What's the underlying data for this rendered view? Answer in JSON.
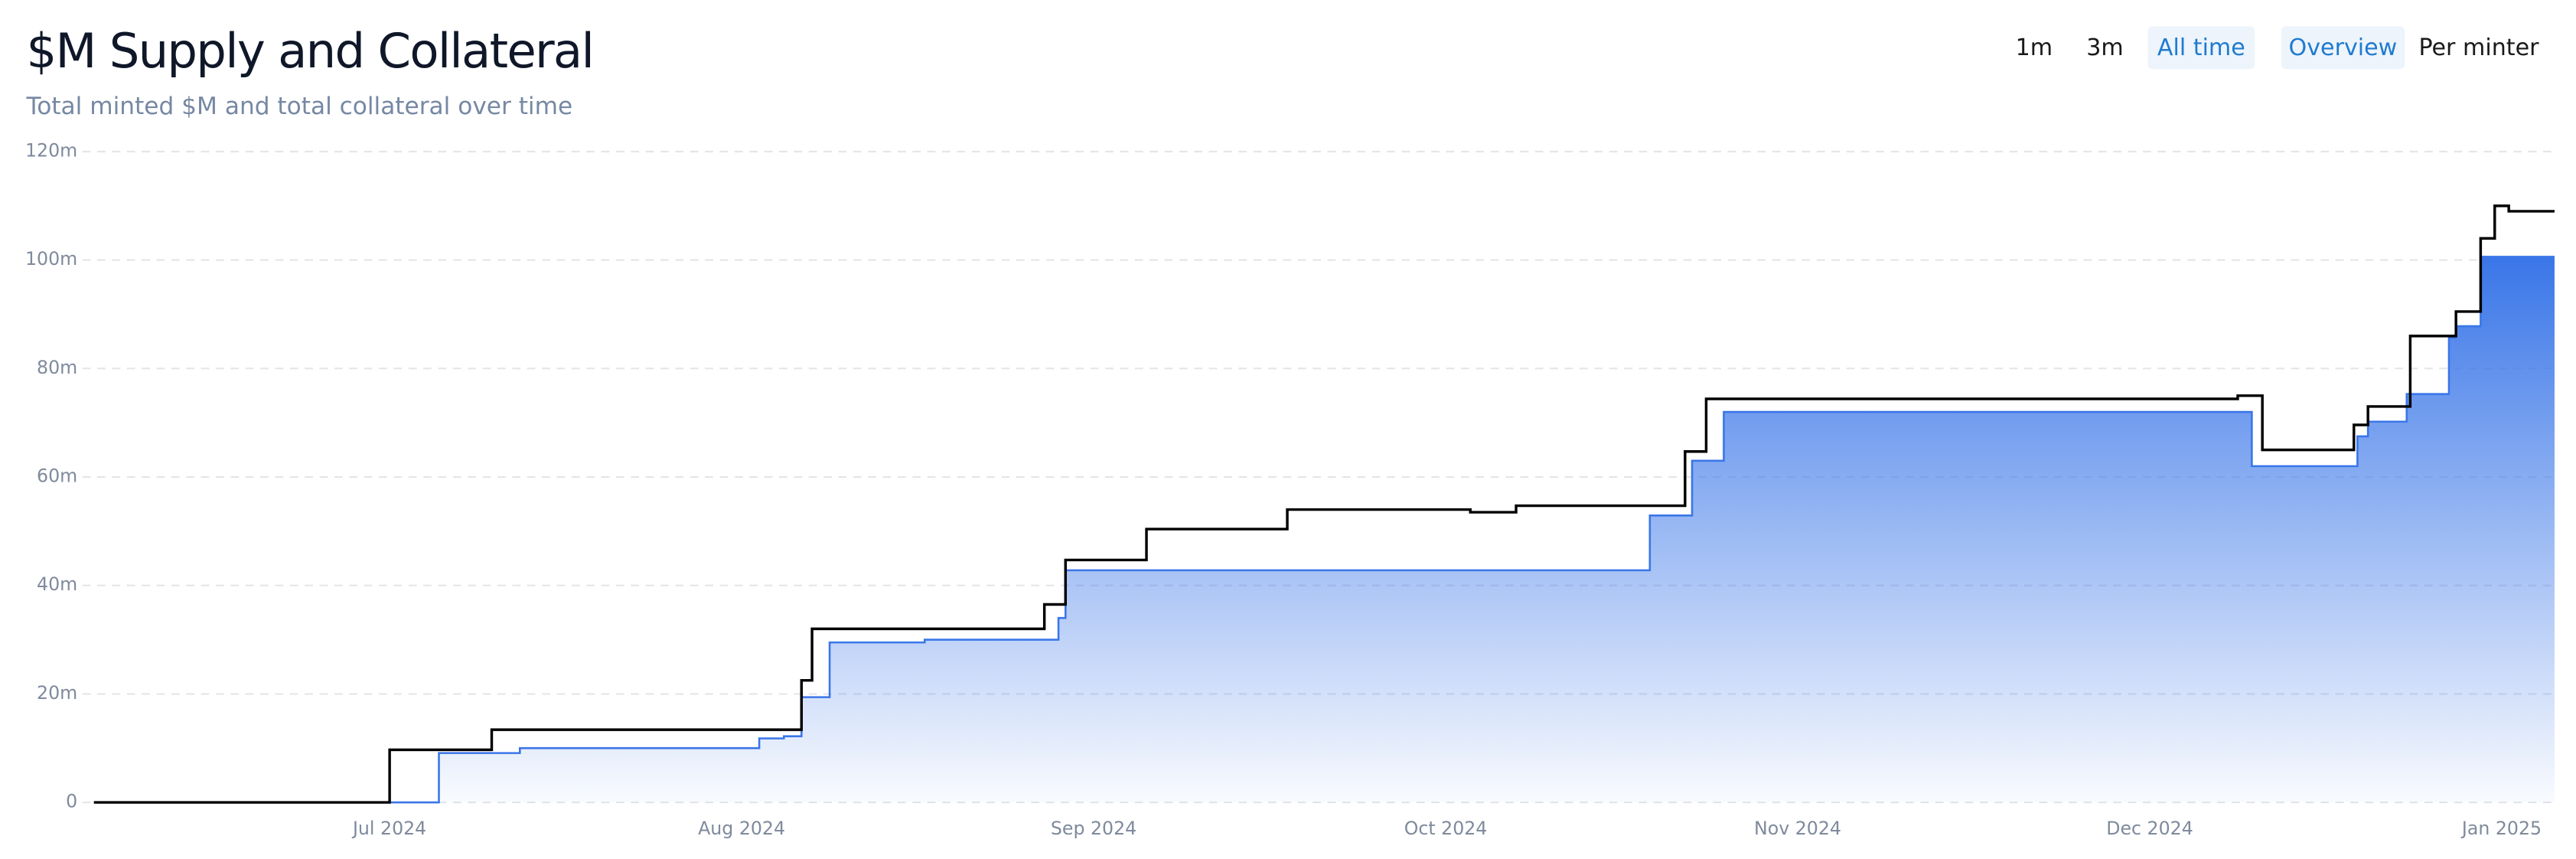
{
  "controls": {
    "range": [
      "1m",
      "3m",
      "All time"
    ],
    "view": [
      "Overview",
      "Per minter"
    ],
    "active_range": 2,
    "active_view": 0
  },
  "chart_data": {
    "type": "step-line",
    "title": "$M Supply and Collateral",
    "subtitle": "Total minted $M and total collateral over time",
    "xlim": [
      -0.84,
      6.15
    ],
    "xticks": [
      {
        "value": 0,
        "label": "Jul 2024"
      },
      {
        "value": 1,
        "label": "Aug 2024"
      },
      {
        "value": 2,
        "label": "Sep 2024"
      },
      {
        "value": 3,
        "label": "Oct 2024"
      },
      {
        "value": 4,
        "label": "Nov 2024"
      },
      {
        "value": 5,
        "label": "Dec 2024"
      },
      {
        "value": 6,
        "label": "Jan 2025"
      }
    ],
    "ylim": [
      0,
      120
    ],
    "yticks": [
      0,
      {
        "value": 20,
        "label": "20m"
      },
      {
        "value": 40,
        "label": "40m"
      },
      {
        "value": 60,
        "label": "60m"
      },
      {
        "value": 80,
        "label": "80m"
      },
      {
        "value": 100,
        "label": "100m"
      },
      {
        "value": 120,
        "label": "120m"
      }
    ],
    "grid": true,
    "series": [
      {
        "color": "#3a76e8",
        "area": true,
        "x": [
          -0.84,
          0.14,
          0.14,
          0.37,
          0.37,
          1.05,
          1.05,
          1.12,
          1.12,
          1.17,
          1.17,
          1.25,
          1.25,
          1.52,
          1.52,
          1.9,
          1.9,
          1.92,
          1.92,
          3.58,
          3.58,
          3.7,
          3.7,
          3.79,
          3.79,
          5.29,
          5.29,
          5.59,
          5.59,
          5.62,
          5.62,
          5.73,
          5.73,
          5.85,
          5.85,
          5.87,
          5.87,
          5.94,
          5.94,
          6.15
        ],
        "values": [
          0,
          0,
          9.1,
          9.1,
          10,
          10,
          11.8,
          11.8,
          12.2,
          12.2,
          19.4,
          19.4,
          29.5,
          29.5,
          30,
          30,
          34,
          34,
          42.8,
          42.8,
          52.9,
          52.9,
          63,
          63,
          72,
          72,
          62,
          62,
          67.5,
          67.5,
          70.2,
          70.2,
          75.3,
          75.3,
          85.7,
          85.7,
          87.8,
          87.8,
          100.6,
          100.6
        ]
      },
      {
        "color": "#000000",
        "area": false,
        "x": [
          -0.84,
          0,
          0,
          0.29,
          0.29,
          1.17,
          1.17,
          1.2,
          1.2,
          1.86,
          1.86,
          1.92,
          1.92,
          2.15,
          2.15,
          2.55,
          2.55,
          3.07,
          3.07,
          3.2,
          3.2,
          3.68,
          3.68,
          3.74,
          3.74,
          5.25,
          5.25,
          5.32,
          5.32,
          5.58,
          5.58,
          5.62,
          5.62,
          5.74,
          5.74,
          5.87,
          5.87,
          5.94,
          5.94,
          5.98,
          5.98,
          6.02,
          6.02,
          6.15
        ],
        "values": [
          0,
          0,
          9.7,
          9.7,
          13.4,
          13.4,
          22.5,
          22.5,
          32,
          32,
          36.5,
          36.5,
          44.7,
          44.7,
          50.4,
          50.4,
          54,
          54,
          53.5,
          53.5,
          54.7,
          54.7,
          64.7,
          64.7,
          74.4,
          74.4,
          75,
          75,
          65,
          65,
          69.6,
          69.6,
          73,
          73,
          86,
          86,
          90.5,
          90.5,
          104,
          104,
          110,
          110,
          109,
          109
        ]
      }
    ]
  }
}
